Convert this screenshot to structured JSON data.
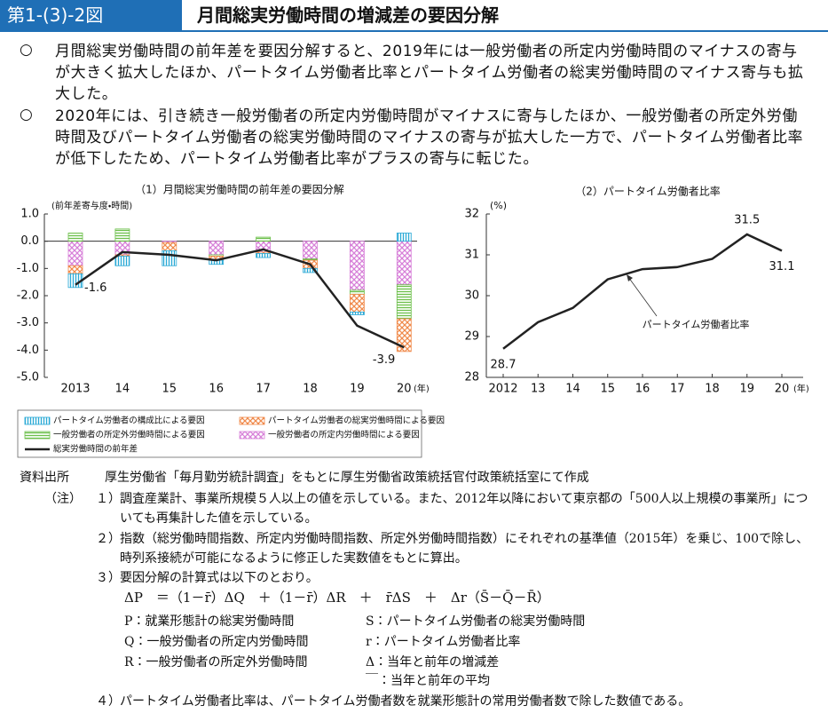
{
  "header": {
    "figure_number": "第1-(3)-2図",
    "title": "月間総実労働時間の増減差の要因分解"
  },
  "bullet_mark": "○",
  "bullets": [
    "月間総実労働時間の前年差を要因分解すると、2019年には一般労働者の所定内労働時間のマイナスの寄与が大きく拡大したほか、パートタイム労働者比率とパートタイム労働者の総実労働時間のマイナス寄与も拡大した。",
    "2020年には、引き続き一般労働者の所定内労働時間がマイナスに寄与したほか、一般労働者の所定外労働時間及びパートタイム労働者の総実労働時間のマイナスの寄与が拡大した一方で、パートタイム労働者比率が低下したため、パートタイム労働者比率がプラスの寄与に転じた。"
  ],
  "chart_data": [
    {
      "type": "bar",
      "stacked": true,
      "title": "（1）月間総実労働時間の前年差の要因分解",
      "ylabel": "(前年差寄与度・時間)",
      "x_unit": "(年)",
      "categories": [
        "2013",
        "14",
        "15",
        "16",
        "17",
        "18",
        "19",
        "20"
      ],
      "ylim": [
        -5,
        1
      ],
      "yticks": [
        {
          "value": 1,
          "label": "1.0"
        },
        {
          "value": 0,
          "label": "0.0"
        },
        {
          "value": -1,
          "label": "-1.0"
        },
        {
          "value": -2,
          "label": "-2.0"
        },
        {
          "value": -3,
          "label": "-3.0"
        },
        {
          "value": -4,
          "label": "-4.0"
        },
        {
          "value": -5,
          "label": "-5.0"
        }
      ],
      "series": [
        {
          "name": "パートタイム労働者の構成比による要因",
          "color": "#29a9d6",
          "pattern": "vertical",
          "values": [
            -0.5,
            -0.35,
            -0.55,
            -0.15,
            -0.15,
            -0.15,
            -0.1,
            0.3
          ]
        },
        {
          "name": "パートタイム労働者の総実労働時間による要因",
          "color": "#f08a4b",
          "pattern": "crosshatch",
          "values": [
            -0.3,
            -0.05,
            -0.3,
            -0.15,
            -0.05,
            -0.3,
            -0.65,
            -1.2
          ]
        },
        {
          "name": "一般労働者の所定外労働時間による要因",
          "color": "#6cbf4a",
          "pattern": "horizontal",
          "values": [
            0.3,
            0.45,
            0.0,
            -0.05,
            0.15,
            -0.05,
            -0.15,
            -1.25
          ]
        },
        {
          "name": "一般労働者の所定内労働時間による要因",
          "color": "#d77fd8",
          "pattern": "diamond",
          "values": [
            -0.9,
            -0.5,
            -0.05,
            -0.5,
            -0.4,
            -0.65,
            -1.8,
            -1.6
          ]
        },
        {
          "name": "総実労働時間の前年差",
          "color": "#222222",
          "type": "line",
          "values": [
            -1.6,
            -0.4,
            -0.5,
            -0.7,
            -0.3,
            -0.85,
            -3.1,
            -3.9
          ],
          "value_labels": [
            "-1.6",
            null,
            null,
            null,
            null,
            null,
            null,
            "-3.9"
          ]
        }
      ]
    },
    {
      "type": "line",
      "title": "（2）パートタイム労働者比率",
      "y_unit": "(%)",
      "x_unit": "(年)",
      "categories": [
        "2012",
        "13",
        "14",
        "15",
        "16",
        "17",
        "18",
        "19",
        "20"
      ],
      "ylim": [
        28,
        32
      ],
      "yticks": [
        28,
        29,
        30,
        31,
        32
      ],
      "color": "#222222",
      "values": [
        28.7,
        29.35,
        29.7,
        30.4,
        30.65,
        30.7,
        30.9,
        31.5,
        31.1
      ],
      "value_labels": [
        "28.7",
        null,
        null,
        null,
        null,
        null,
        null,
        "31.5",
        "31.1"
      ],
      "annotation": "パートタイム労働者比率"
    }
  ],
  "source": {
    "label": "資料出所",
    "text": "厚生労働省「毎月勤労統計調査」をもとに厚生労働省政策統括官付政策統括室にて作成"
  },
  "notes": {
    "label": "（注）",
    "items": [
      {
        "number": "１）",
        "text": "調査産業計、事業所規模５人以上の値を示している。また、2012年以降において東京都の「500人以上規模の事業所」についても再集計した値を示している。"
      },
      {
        "number": "２）",
        "text": "指数（総労働時間指数、所定内労働時間指数、所定外労働時間指数）にそれぞれの基準値（2015年）を乗じ、100で除し、時列系接続が可能になるように修正した実数値をもとに算出。"
      },
      {
        "number": "３）",
        "text": "要因分解の計算式は以下のとおり。",
        "formula": "ΔP　＝（1－r̄）ΔQ　＋（1－r̄）ΔR　＋　r̄ΔS　＋　Δr（S̄－Q̄－R̄）",
        "definitions_left": [
          "P：就業形態計の総実労働時間",
          "Q：一般労働者の所定内労働時間",
          "R：一般労働者の所定外労働時間"
        ],
        "definitions_right": [
          "S：パートタイム労働者の総実労働時間",
          "r：パートタイム労働者比率",
          "Δ：当年と前年の増減差",
          "￣：当年と前年の平均"
        ]
      },
      {
        "number": "４）",
        "text": "パートタイム労働者比率は、パートタイム労働者数を就業形態計の常用労働者数で除した数値である。"
      }
    ]
  }
}
